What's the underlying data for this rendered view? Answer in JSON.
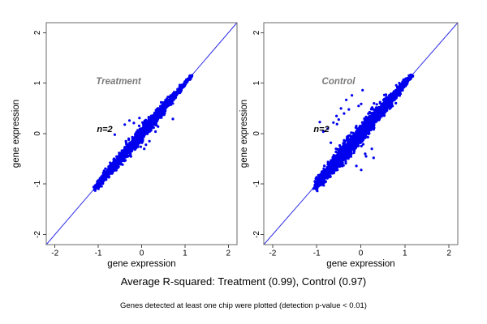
{
  "figure": {
    "background": "#ffffff",
    "point_color": "#0000ee",
    "line_color": "#3030e8",
    "group_label_color": "#7a7a7a"
  },
  "captions": {
    "line1": "Average R-squared: Treatment (0.99), Control (0.97)",
    "line2": "Genes detected at least one chip were plotted (detection p-value < 0.01)"
  },
  "chart_data": [
    {
      "type": "scatter",
      "title": "Treatment",
      "annotation": "n=2",
      "n": 2,
      "r_squared": 0.99,
      "xlabel": "gene expression",
      "ylabel": "gene expression",
      "xlim": [
        -2.2,
        2.2
      ],
      "ylim": [
        -2.2,
        2.2
      ],
      "xticks": [
        -2,
        -1,
        0,
        1,
        2
      ],
      "yticks": [
        -2,
        -1,
        0,
        1,
        2
      ],
      "grid": false,
      "reference_line": {
        "type": "identity",
        "intercept": 0,
        "slope": 1
      },
      "annotation_pos": [
        -0.85,
        0.08
      ],
      "title_pos": [
        -0.52,
        1.04
      ],
      "cloud": {
        "description": "dense blob of gene expression replicate values along y=x",
        "seed": 11,
        "points": 2400,
        "t_min": -1.08,
        "t_max": 1.16,
        "t_mean": -0.25,
        "t_sd": 0.6,
        "uniform_frac": 0.22,
        "width_max": 0.115,
        "width_center": -0.1,
        "width_span": 1.35,
        "edge_frac": 0.07,
        "x_jitter": 0.015
      },
      "outliers": [
        [
          -0.39,
          0.18
        ],
        [
          -0.28,
          0.26
        ],
        [
          -0.18,
          0.21
        ],
        [
          -0.05,
          0.31
        ],
        [
          0.72,
          0.29
        ],
        [
          0.1,
          -0.22
        ],
        [
          0.18,
          -0.15
        ],
        [
          0.06,
          -0.3
        ],
        [
          -0.02,
          -0.26
        ],
        [
          0.32,
          0.04
        ],
        [
          0.45,
          0.62
        ],
        [
          -0.62,
          -0.02
        ],
        [
          0.38,
          0.14
        ],
        [
          0.02,
          0.22
        ]
      ]
    },
    {
      "type": "scatter",
      "title": "Control",
      "annotation": "n=2",
      "n": 2,
      "r_squared": 0.97,
      "xlabel": "gene expression",
      "ylabel": "gene expression",
      "xlim": [
        -2.2,
        2.2
      ],
      "ylim": [
        -2.2,
        2.2
      ],
      "xticks": [
        -2,
        -1,
        0,
        1,
        2
      ],
      "yticks": [
        -2,
        -1,
        0,
        1,
        2
      ],
      "grid": false,
      "reference_line": {
        "type": "identity",
        "intercept": 0,
        "slope": 1
      },
      "annotation_pos": [
        -0.89,
        0.08
      ],
      "title_pos": [
        -0.51,
        1.04
      ],
      "cloud": {
        "description": "wider blob of gene expression replicate values along y=x",
        "seed": 23,
        "points": 2800,
        "t_min": -1.05,
        "t_max": 1.16,
        "t_mean": -0.25,
        "t_sd": 0.6,
        "uniform_frac": 0.22,
        "width_max": 0.165,
        "width_center": -0.05,
        "width_span": 1.4,
        "edge_frac": 0.1,
        "x_jitter": 0.018
      },
      "outliers": [
        [
          -0.93,
          0.23
        ],
        [
          -0.33,
          0.67
        ],
        [
          -0.2,
          0.76
        ],
        [
          0.04,
          0.86
        ],
        [
          -0.45,
          0.5
        ],
        [
          -0.55,
          0.35
        ],
        [
          -0.62,
          0.22
        ],
        [
          -0.75,
          0.1
        ],
        [
          -0.85,
          0.04
        ],
        [
          -0.5,
          0.28
        ],
        [
          -0.38,
          0.4
        ],
        [
          -0.27,
          0.48
        ],
        [
          0.01,
          0.59
        ],
        [
          -0.54,
          0.19
        ],
        [
          -0.1,
          -0.64
        ],
        [
          0.01,
          -0.72
        ],
        [
          0.12,
          -0.45
        ],
        [
          0.29,
          -0.48
        ],
        [
          0.25,
          -0.3
        ],
        [
          0.1,
          -0.4
        ],
        [
          -0.05,
          0.55
        ],
        [
          0.3,
          0.6
        ],
        [
          0.97,
          1.07
        ],
        [
          -0.68,
          -0.18
        ]
      ]
    }
  ]
}
